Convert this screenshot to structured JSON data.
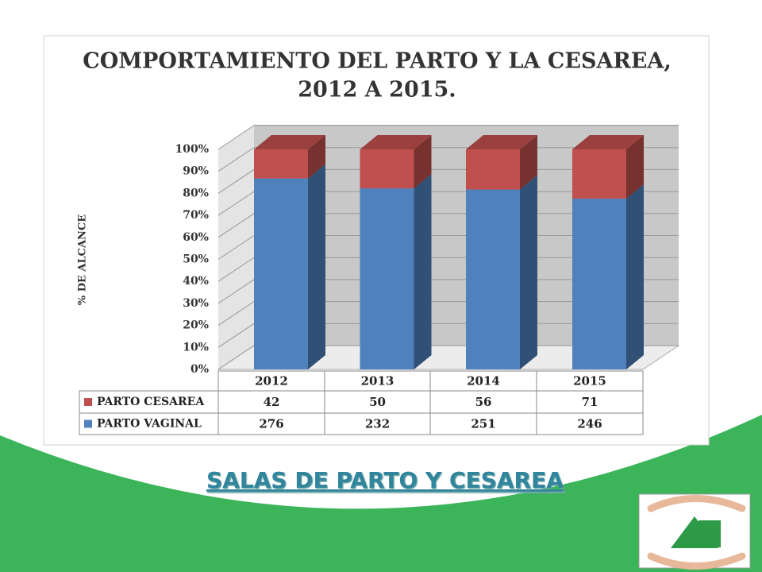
{
  "chart_data": {
    "type": "bar",
    "stacking": "percent",
    "title": "COMPORTAMIENTO DEL PARTO Y LA CESAREA, 2012 A 2015.",
    "y_label": "% DE ALCANCE",
    "categories": [
      "2012",
      "2013",
      "2014",
      "2015"
    ],
    "series": [
      {
        "name": "PARTO CESAREA",
        "color": "#c0504d",
        "values": [
          42,
          50,
          56,
          71
        ]
      },
      {
        "name": "PARTO VAGINAL",
        "color": "#4f81bd",
        "values": [
          276,
          232,
          251,
          246
        ]
      }
    ],
    "ylim": [
      0,
      100
    ],
    "yticks": [
      {
        "value": 0,
        "label": "0%"
      },
      {
        "value": 10,
        "label": "10%"
      },
      {
        "value": 20,
        "label": "20%"
      },
      {
        "value": 30,
        "label": "30%"
      },
      {
        "value": 40,
        "label": "40%"
      },
      {
        "value": 50,
        "label": "50%"
      },
      {
        "value": 60,
        "label": "60%"
      },
      {
        "value": 70,
        "label": "70%"
      },
      {
        "value": 80,
        "label": "80%"
      },
      {
        "value": 90,
        "label": "90%"
      },
      {
        "value": 100,
        "label": "100%"
      }
    ],
    "grid": true
  },
  "footer": {
    "heading": "SALAS DE PARTO Y CESAREA"
  }
}
